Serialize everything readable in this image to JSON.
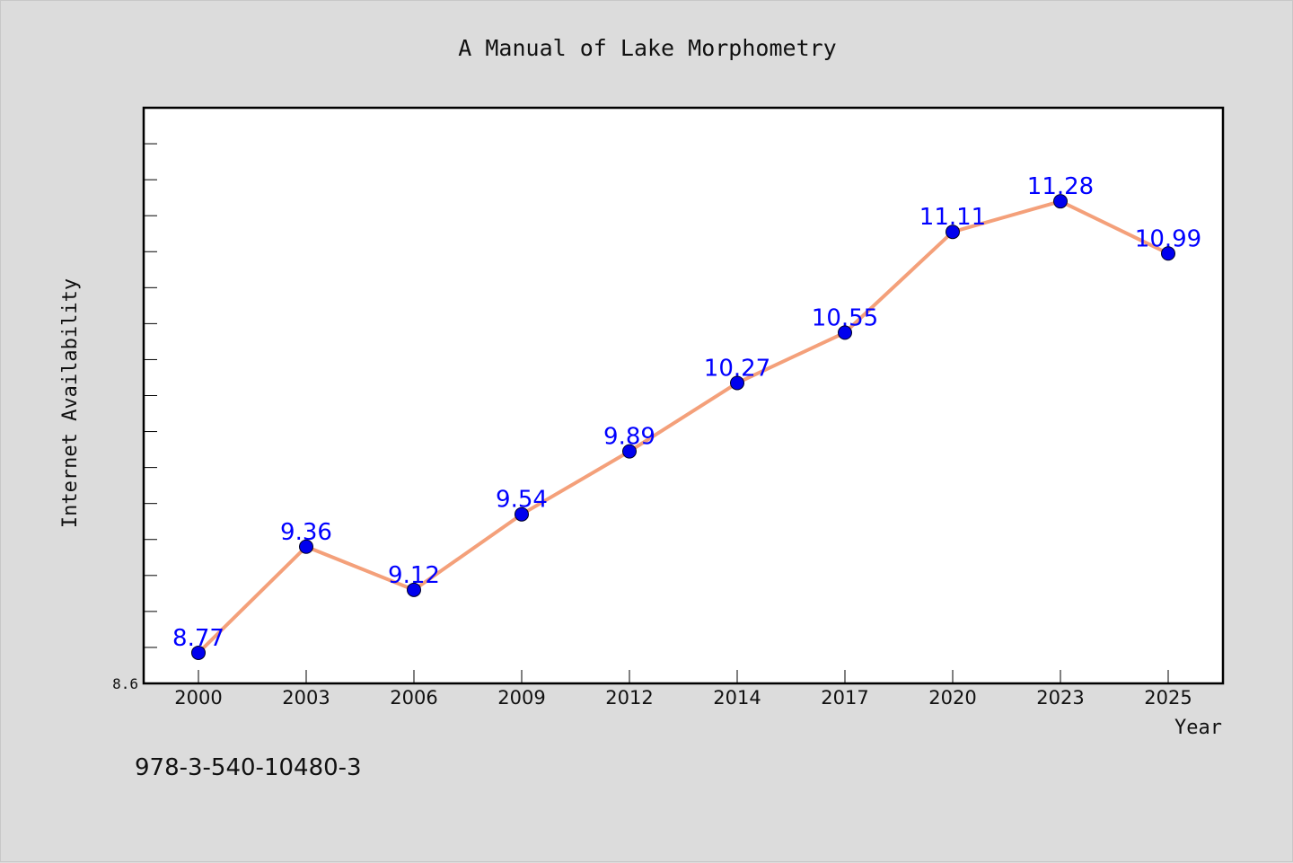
{
  "chart_data": {
    "type": "line",
    "title": "A Manual of Lake Morphometry",
    "xlabel": "Year",
    "ylabel": "Internet Availability",
    "categories": [
      "2000",
      "2003",
      "2006",
      "2009",
      "2012",
      "2014",
      "2017",
      "2020",
      "2023",
      "2025"
    ],
    "series": [
      {
        "values": [
          8.77,
          9.36,
          9.12,
          9.54,
          9.89,
          10.27,
          10.55,
          11.11,
          11.28,
          10.99
        ]
      }
    ],
    "data_labels": [
      "8.77",
      "9.36",
      "9.12",
      "9.54",
      "9.89",
      "10.27",
      "10.55",
      "11.11",
      "11.28",
      "10.99"
    ],
    "y_tick_label": "8.6",
    "ylim": [
      8.6,
      11.8
    ],
    "grid": false,
    "legend": "none",
    "colors": {
      "line": "#f4a07a",
      "marker": "#0000ee",
      "label": "#0000ff"
    }
  },
  "caption": "978-3-540-10480-3"
}
